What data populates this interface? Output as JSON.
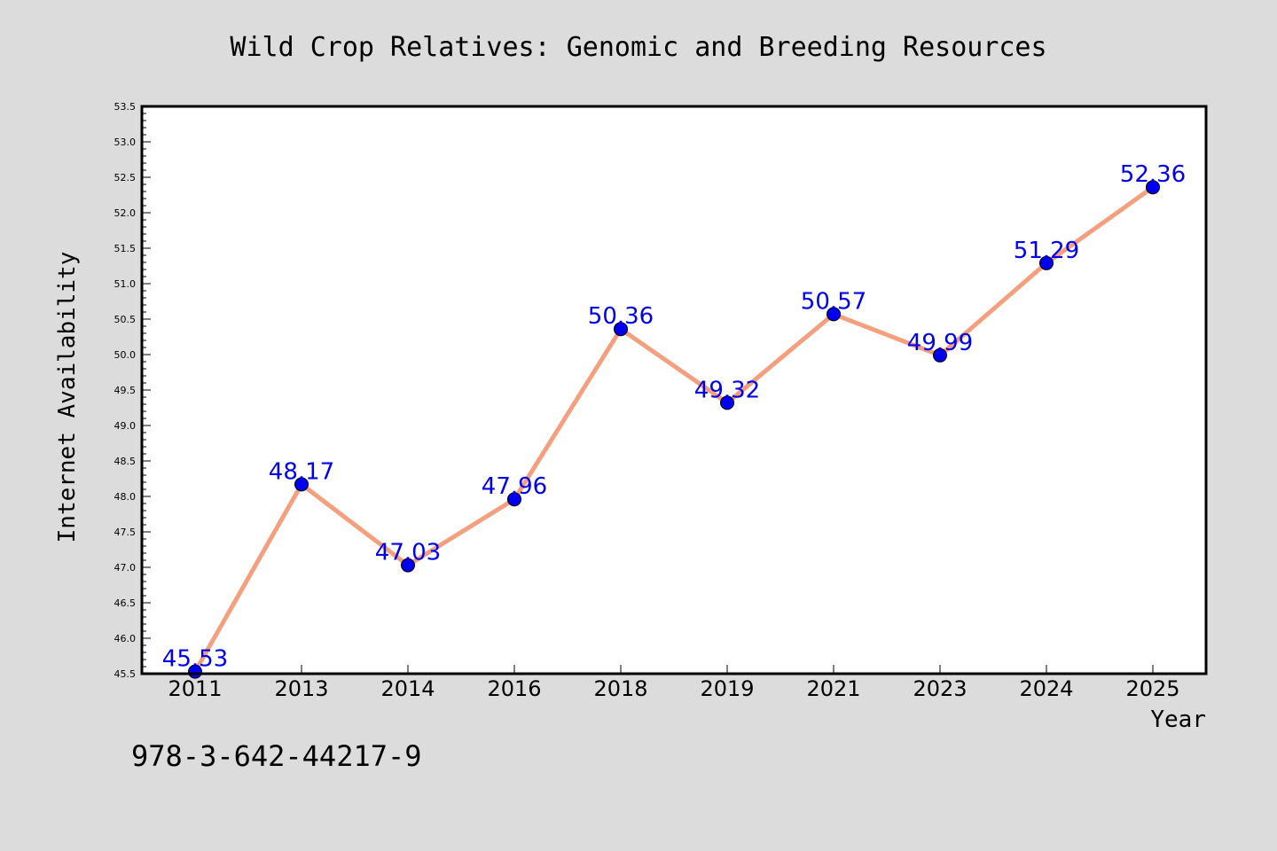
{
  "colors": {
    "background": "#dcdcdc",
    "plot_background": "#ffffff",
    "line": "#f4a07e",
    "marker": "#0000ee",
    "data_label": "#0000ee"
  },
  "footnote": "978-3-642-44217-9",
  "chart_data": {
    "type": "line",
    "title": "Wild Crop Relatives: Genomic and Breeding Resources",
    "xlabel": "Year",
    "ylabel": "Internet Availability",
    "categories": [
      "2011",
      "2013",
      "2014",
      "2016",
      "2018",
      "2019",
      "2021",
      "2023",
      "2024",
      "2025"
    ],
    "series": [
      {
        "values": [
          45.53,
          48.17,
          47.03,
          47.96,
          50.36,
          49.32,
          50.57,
          49.99,
          51.29,
          52.36
        ],
        "data_labels": [
          "45.53",
          "48.17",
          "47.03",
          "47.96",
          "50.36",
          "49.32",
          "50.57",
          "49.99",
          "51.29",
          "52.36"
        ]
      }
    ],
    "ylim": [
      45.5,
      53.5
    ],
    "yticks": [
      "45.5",
      "46.0",
      "46.5",
      "47.0",
      "47.5",
      "48.0",
      "48.5",
      "49.0",
      "49.5",
      "50.0",
      "50.5",
      "51.0",
      "51.5",
      "52.0",
      "52.5",
      "53.0",
      "53.5"
    ],
    "grid": false,
    "legend": "none",
    "markers": true
  }
}
